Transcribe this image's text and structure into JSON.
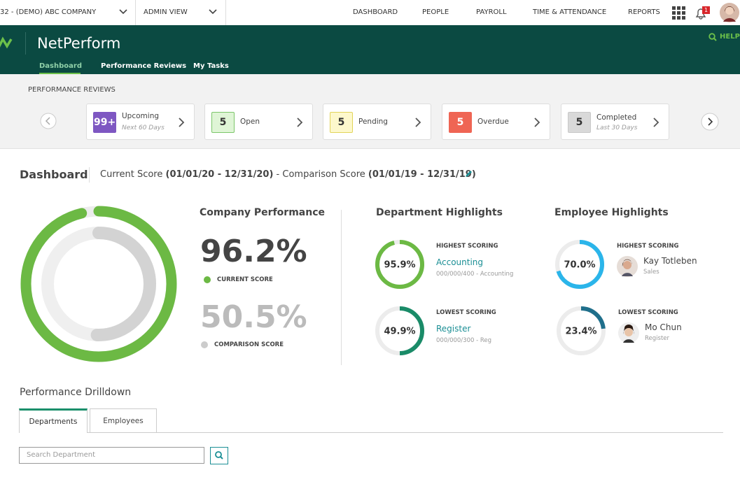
{
  "topbar": {
    "company": "32 - (DEMO) ABC COMPANY",
    "view": "ADMIN VIEW",
    "nav": [
      "DASHBOARD",
      "PEOPLE",
      "PAYROLL",
      "TIME & ATTENDANCE",
      "REPORTS"
    ],
    "notifications": "1"
  },
  "header": {
    "brand": "NetPerform",
    "help": "HELP",
    "tabs": [
      "Dashboard",
      "Performance Reviews",
      "My Tasks"
    ]
  },
  "reviews": {
    "title": "PERFORMANCE REVIEWS",
    "cards": [
      {
        "count": "99+",
        "label": "Upcoming",
        "sub": "Next 60 Days"
      },
      {
        "count": "5",
        "label": "Open"
      },
      {
        "count": "5",
        "label": "Pending"
      },
      {
        "count": "5",
        "label": "Overdue"
      },
      {
        "count": "5",
        "label": "Completed",
        "sub": "Last 30 Days"
      }
    ]
  },
  "dashboard": {
    "title": "Dashboard",
    "current_label": "Current Score",
    "current_range": "(01/01/20 - 12/31/20)",
    "separator": "-",
    "comparison_label": "Comparison Score",
    "comparison_range": "(01/01/19 - 12/31/19)"
  },
  "company": {
    "title": "Company Performance",
    "current": {
      "value": 96.2,
      "label": "96.2%"
    },
    "current_caption": "CURRENT SCORE",
    "comparison": {
      "value": 50.5,
      "label": "50.5%"
    },
    "comparison_caption": "COMPARISON SCORE"
  },
  "departments": {
    "title": "Department Highlights",
    "items": [
      {
        "heading": "HIGHEST SCORING",
        "score": {
          "value": 95.9,
          "label": "95.9%"
        },
        "name": "Accounting",
        "detail": "000/000/400 - Accounting"
      },
      {
        "heading": "LOWEST SCORING",
        "score": {
          "value": 49.9,
          "label": "49.9%"
        },
        "name": "Register",
        "detail": "000/000/300 - Reg"
      }
    ]
  },
  "employees": {
    "title": "Employee Highlights",
    "items": [
      {
        "heading": "HIGHEST SCORING",
        "score": {
          "value": 70.0,
          "label": "70.0%"
        },
        "name": "Kay Totleben",
        "detail": "Sales"
      },
      {
        "heading": "LOWEST SCORING",
        "score": {
          "value": 23.4,
          "label": "23.4%"
        },
        "name": "Mo Chun",
        "detail": "Register"
      }
    ]
  },
  "drilldown": {
    "title": "Performance Drilldown",
    "tabs": [
      "Departments",
      "Employees"
    ],
    "search_placeholder": "Search Department"
  }
}
